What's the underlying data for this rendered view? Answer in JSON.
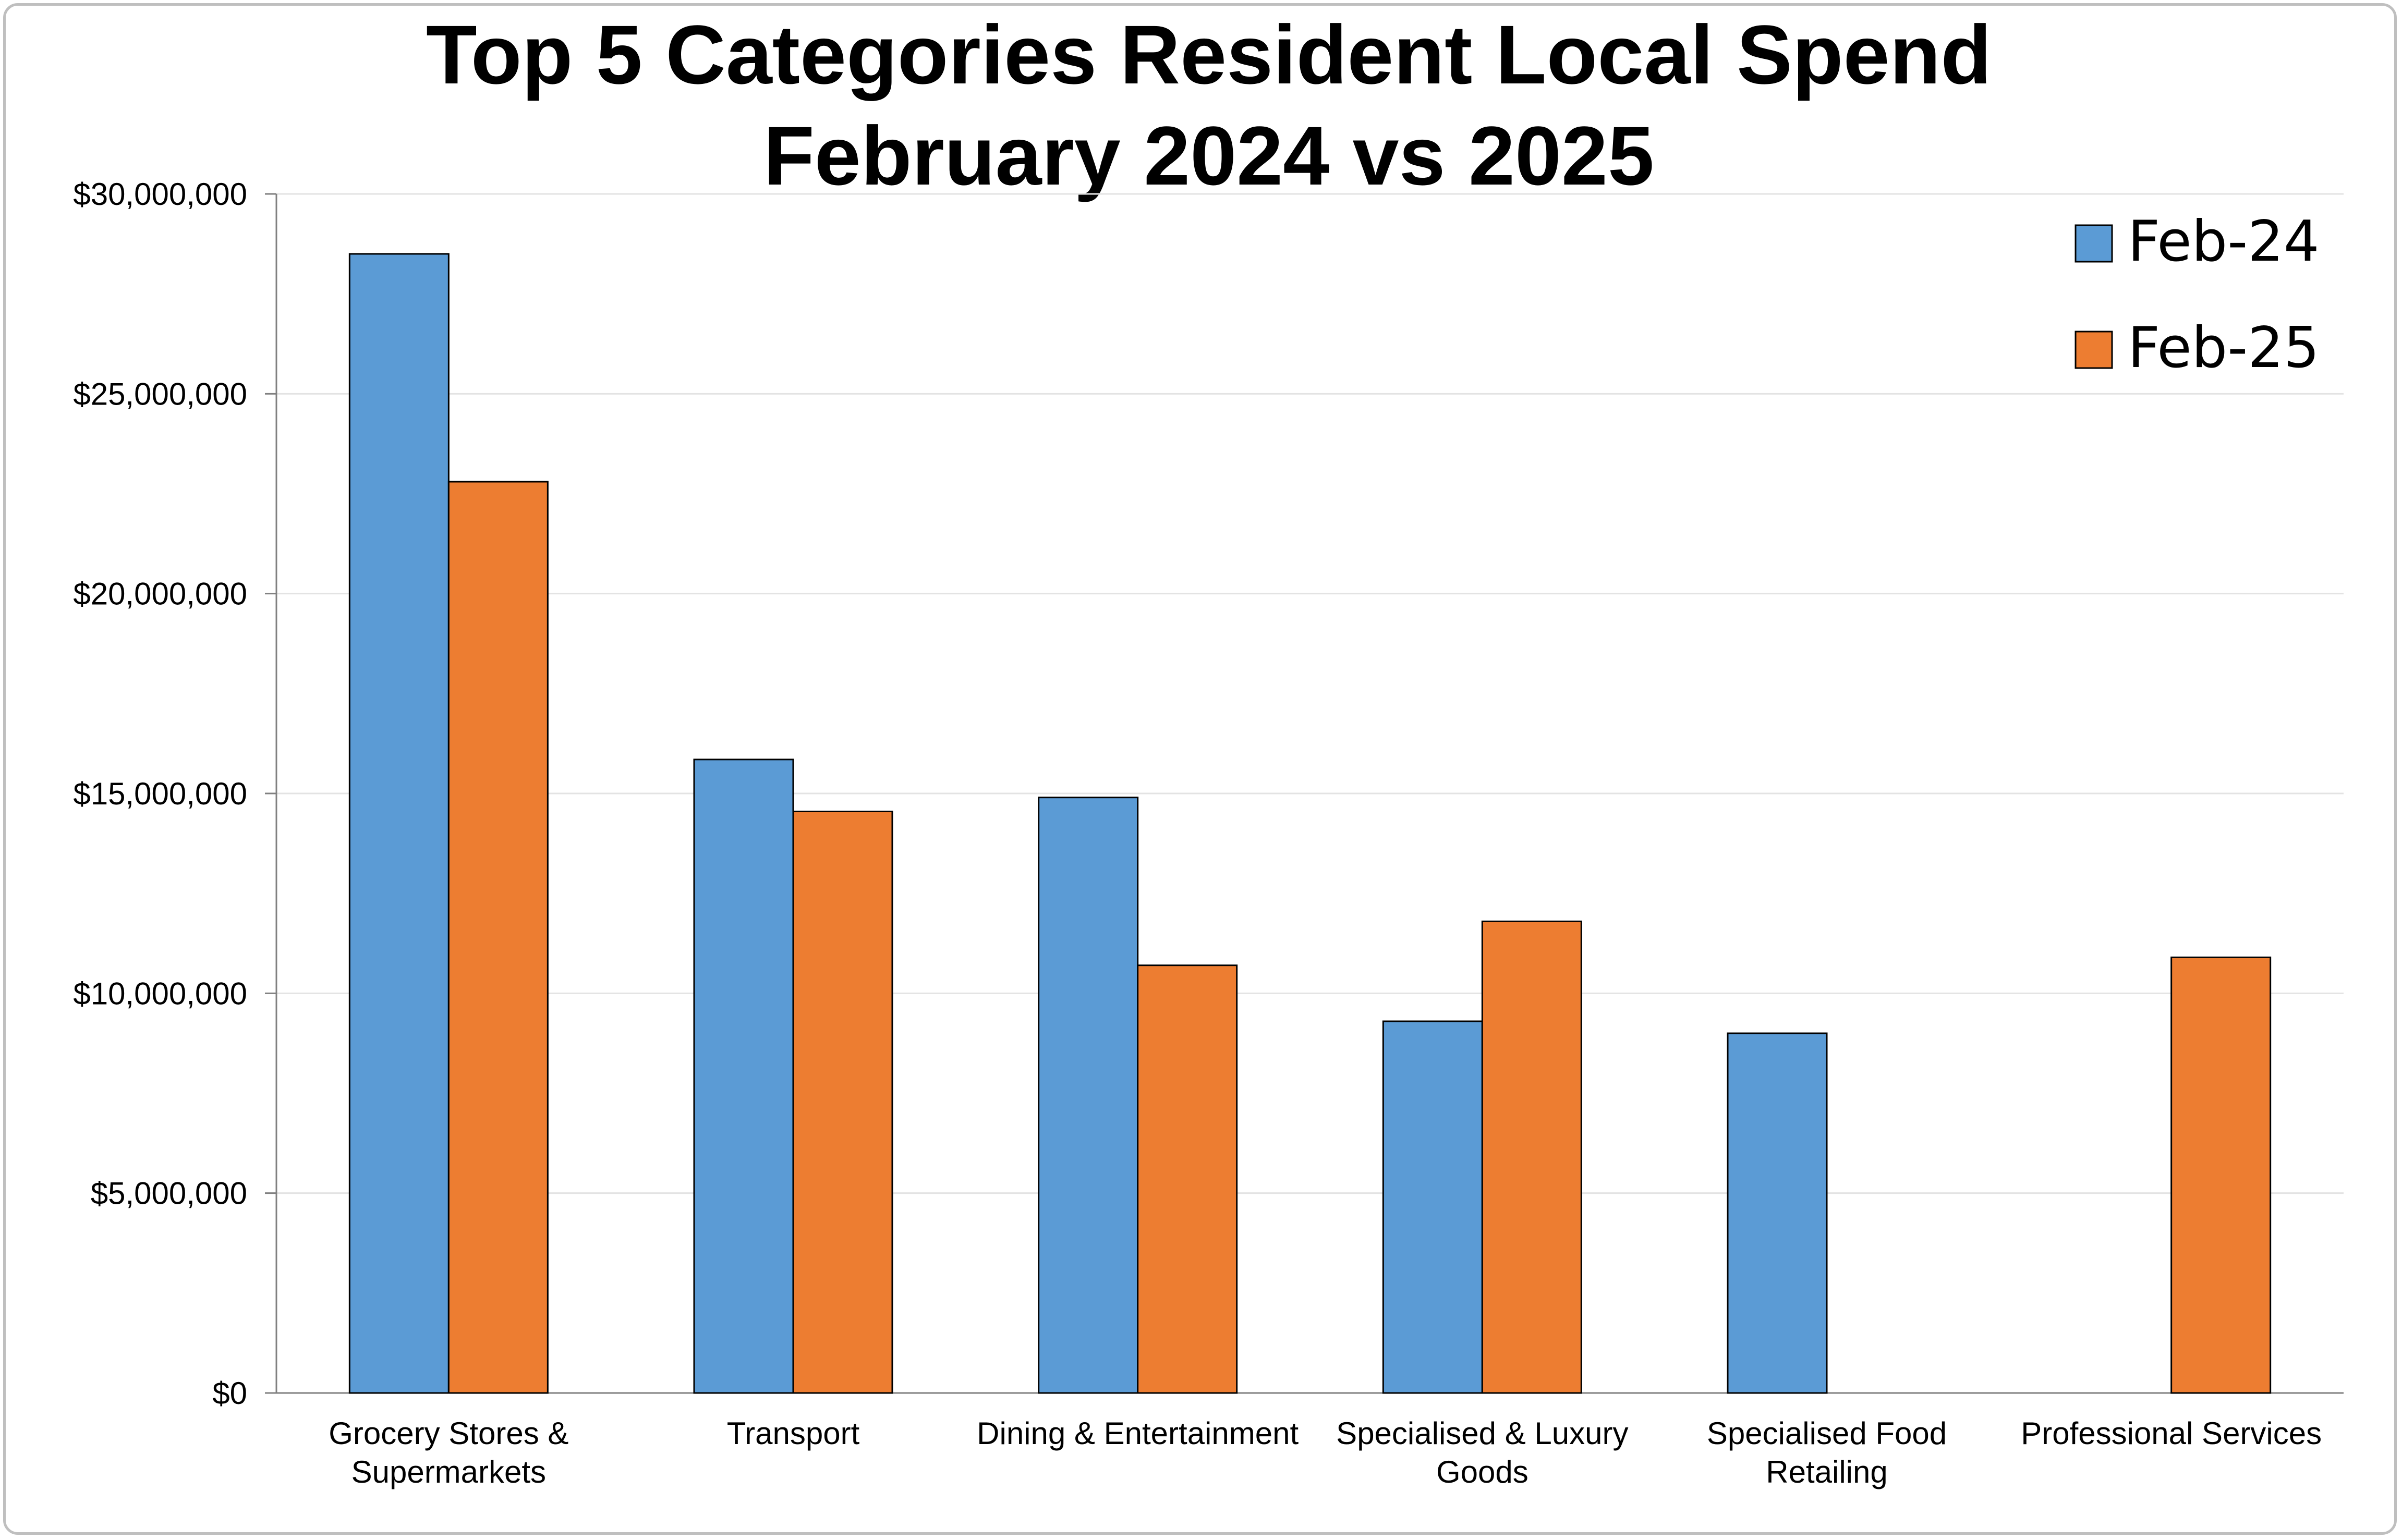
{
  "chart_data": {
    "type": "bar",
    "title_lines": [
      "Top 5 Categories Resident Local Spend",
      "February 2024 vs 2025"
    ],
    "categories": [
      [
        "Grocery Stores &",
        "Supermarkets"
      ],
      [
        "Transport"
      ],
      [
        "Dining & Entertainment"
      ],
      [
        "Specialised & Luxury",
        "Goods"
      ],
      [
        "Specialised Food",
        "Retailing"
      ],
      [
        "Professional Services"
      ]
    ],
    "series": [
      {
        "name": "Feb-24",
        "color": "#5b9bd5",
        "values": [
          28500000,
          15850000,
          14900000,
          9300000,
          9000000,
          null
        ]
      },
      {
        "name": "Feb-25",
        "color": "#ed7d31",
        "values": [
          22800000,
          14550000,
          10700000,
          11800000,
          null,
          10900000
        ]
      }
    ],
    "y_ticks": [
      "$0",
      "$5,000,000",
      "$10,000,000",
      "$15,000,000",
      "$20,000,000",
      "$25,000,000",
      "$30,000,000"
    ],
    "ylim": [
      0,
      30000000
    ],
    "y_step": 5000000,
    "grid": true,
    "legend_position": "top-right"
  }
}
